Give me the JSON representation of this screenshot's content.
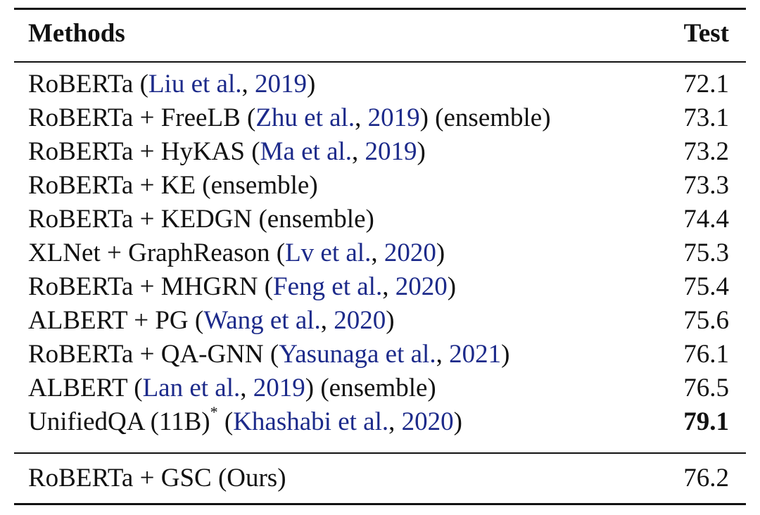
{
  "header": {
    "methods": "Methods",
    "test": "Test"
  },
  "link_color": "#1c2a8a",
  "rows": [
    {
      "name": "RoBERTa",
      "sup": "",
      "author": "Liu et al.",
      "year": "2019",
      "suffix": "",
      "test": "72.1",
      "bold": false
    },
    {
      "name": "RoBERTa + FreeLB",
      "sup": "",
      "author": "Zhu et al.",
      "year": "2019",
      "suffix": "(ensemble)",
      "test": "73.1",
      "bold": false
    },
    {
      "name": "RoBERTa + HyKAS",
      "sup": "",
      "author": "Ma et al.",
      "year": "2019",
      "suffix": "",
      "test": "73.2",
      "bold": false
    },
    {
      "name": "RoBERTa + KE (ensemble)",
      "sup": "",
      "author": "",
      "year": "",
      "suffix": "",
      "test": "73.3",
      "bold": false
    },
    {
      "name": "RoBERTa + KEDGN (ensemble)",
      "sup": "",
      "author": "",
      "year": "",
      "suffix": "",
      "test": "74.4",
      "bold": false
    },
    {
      "name": "XLNet + GraphReason",
      "sup": "",
      "author": "Lv et al.",
      "year": "2020",
      "suffix": "",
      "test": "75.3",
      "bold": false
    },
    {
      "name": "RoBERTa + MHGRN",
      "sup": "",
      "author": "Feng et al.",
      "year": "2020",
      "suffix": "",
      "test": "75.4",
      "bold": false
    },
    {
      "name": "ALBERT + PG",
      "sup": "",
      "author": "Wang et al.",
      "year": "2020",
      "suffix": "",
      "test": "75.6",
      "bold": false
    },
    {
      "name": "RoBERTa + QA-GNN",
      "sup": "",
      "author": "Yasunaga et al.",
      "year": "2021",
      "suffix": "",
      "test": "76.1",
      "bold": false
    },
    {
      "name": "ALBERT",
      "sup": "",
      "author": "Lan et al.",
      "year": "2019",
      "suffix": "(ensemble)",
      "test": "76.5",
      "bold": false
    },
    {
      "name": "UnifiedQA (11B)",
      "sup": "*",
      "author": "Khashabi et al.",
      "year": "2020",
      "suffix": "",
      "test": "79.1",
      "bold": true
    }
  ],
  "ours": {
    "name": "RoBERTa + GSC (Ours)",
    "test": "76.2"
  }
}
